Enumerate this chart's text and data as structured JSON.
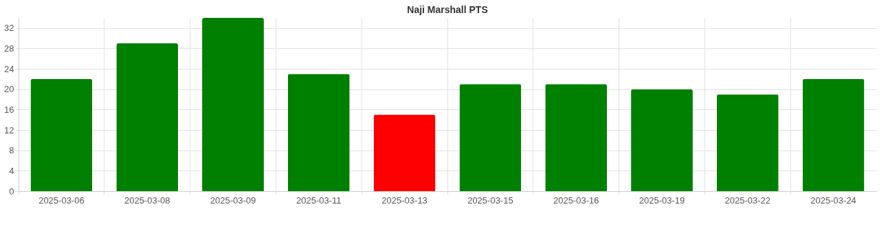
{
  "chart_data": {
    "type": "bar",
    "title": "Naji Marshall PTS",
    "categories": [
      "2025-03-06",
      "2025-03-08",
      "2025-03-09",
      "2025-03-11",
      "2025-03-13",
      "2025-03-15",
      "2025-03-16",
      "2025-03-19",
      "2025-03-22",
      "2025-03-24"
    ],
    "values": [
      22,
      29,
      34,
      23,
      15,
      21,
      21,
      20,
      19,
      22
    ],
    "colors": [
      "#008000",
      "#008000",
      "#008000",
      "#008000",
      "#ff0000",
      "#008000",
      "#008000",
      "#008000",
      "#008000",
      "#008000"
    ],
    "ylim": [
      0,
      34
    ],
    "yticks": [
      0,
      4,
      8,
      12,
      16,
      20,
      24,
      28,
      32
    ],
    "grid": true
  }
}
